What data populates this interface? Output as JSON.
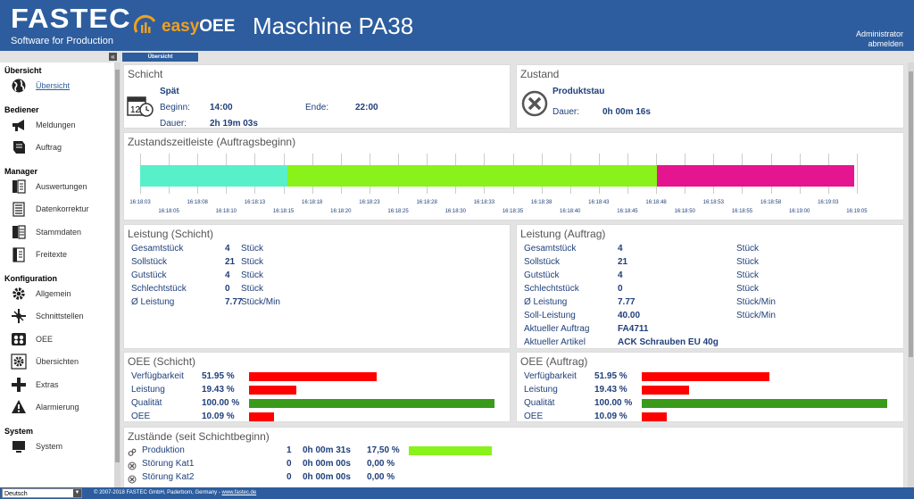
{
  "header": {
    "brand": "FASTEC",
    "brand_sub": "Software for Production",
    "product_prefix": "easy",
    "product_suffix": "OEE",
    "machine": "Maschine PA38",
    "user": "Administrator",
    "logout": "abmelden",
    "colors": {
      "bar": "#2d5d9e",
      "easy_orange": "#f0a020"
    }
  },
  "tabbar": {
    "collapse": "«",
    "active_tab": "Übersicht"
  },
  "sidebar": {
    "sections": [
      {
        "title": "Übersicht",
        "items": [
          {
            "label": "Übersicht",
            "icon": "globe-icon",
            "active": true
          }
        ]
      },
      {
        "title": "Bediener",
        "items": [
          {
            "label": "Meldungen",
            "icon": "megaphone-icon"
          },
          {
            "label": "Auftrag",
            "icon": "order-icon"
          }
        ]
      },
      {
        "title": "Manager",
        "items": [
          {
            "label": "Auswertungen",
            "icon": "report-icon"
          },
          {
            "label": "Datenkorrektur",
            "icon": "edit-data-icon"
          },
          {
            "label": "Stammdaten",
            "icon": "master-data-icon"
          },
          {
            "label": "Freitexte",
            "icon": "freetext-icon"
          }
        ]
      },
      {
        "title": "Konfiguration",
        "items": [
          {
            "label": "Allgemein",
            "icon": "gear-icon"
          },
          {
            "label": "Schnittstellen",
            "icon": "plug-icon"
          },
          {
            "label": "OEE",
            "icon": "oee-icon"
          },
          {
            "label": "Übersichten",
            "icon": "overview-gear-icon"
          },
          {
            "label": "Extras",
            "icon": "plus-icon"
          },
          {
            "label": "Alarmierung",
            "icon": "warning-icon"
          }
        ]
      },
      {
        "title": "System",
        "items": [
          {
            "label": "System",
            "icon": "system-icon"
          }
        ]
      }
    ]
  },
  "footer": {
    "language": "Deutsch",
    "language_arrow": "▼",
    "copyright": "© 2007-2018 FASTEC GmbH, Paderborn, Germany - ",
    "link": "www.fastec.de"
  },
  "schicht": {
    "title": "Schicht",
    "name": "Spät",
    "beginn_label": "Beginn:",
    "beginn": "14:00",
    "ende_label": "Ende:",
    "ende": "22:00",
    "dauer_label": "Dauer:",
    "dauer": "2h 19m 03s",
    "icon_text": "12"
  },
  "zustand": {
    "title": "Zustand",
    "name": "Produktstau",
    "dauer_label": "Dauer:",
    "dauer": "0h 00m 16s"
  },
  "timeline": {
    "title": "Zustandszeitleiste (Auftragsbeginn)",
    "segments": [
      {
        "state": "cyan",
        "color": "#58f0c8",
        "start": 0,
        "end": 0.198
      },
      {
        "state": "produktion",
        "color": "#88f21a",
        "start": 0.198,
        "end": 0.694
      },
      {
        "state": "produktstau",
        "color": "#e5158f",
        "start": 0.694,
        "end": 0.958
      }
    ],
    "ticks_top": [
      "16:18:03",
      "16:18:08",
      "16:18:13",
      "16:18:18",
      "16:18:23",
      "16:18:28",
      "16:18:33",
      "16:18:38",
      "16:18:43",
      "16:18:48",
      "16:18:53",
      "16:18:58",
      "16:19:03"
    ],
    "ticks_bottom": [
      "16:18:05",
      "16:18:10",
      "16:18:15",
      "16:18:20",
      "16:18:25",
      "16:18:30",
      "16:18:35",
      "16:18:40",
      "16:18:45",
      "16:18:50",
      "16:18:55",
      "16:19:00",
      "16:19:05"
    ]
  },
  "leistung_schicht": {
    "title": "Leistung (Schicht)",
    "rows": [
      {
        "label": "Gesamtstück",
        "value": "4",
        "unit": "Stück"
      },
      {
        "label": "Sollstück",
        "value": "21",
        "unit": "Stück"
      },
      {
        "label": "Gutstück",
        "value": "4",
        "unit": "Stück"
      },
      {
        "label": "Schlechtstück",
        "value": "0",
        "unit": "Stück"
      },
      {
        "label": "Ø Leistung",
        "value": "7.77",
        "unit": "Stück/Min"
      }
    ]
  },
  "leistung_auftrag": {
    "title": "Leistung (Auftrag)",
    "rows": [
      {
        "label": "Gesamtstück",
        "value": "4",
        "unit": "Stück"
      },
      {
        "label": "Sollstück",
        "value": "21",
        "unit": "Stück"
      },
      {
        "label": "Gutstück",
        "value": "4",
        "unit": "Stück"
      },
      {
        "label": "Schlechtstück",
        "value": "0",
        "unit": "Stück"
      },
      {
        "label": "Ø Leistung",
        "value": "7.77",
        "unit": "Stück/Min"
      },
      {
        "label": "Soll-Leistung",
        "value": "40.00",
        "unit": "Stück/Min"
      },
      {
        "label": "Aktueller Auftrag",
        "value": "FA4711",
        "unit": ""
      },
      {
        "label": "Aktueller Artikel",
        "value": "ACK Schrauben EU 40g",
        "unit": ""
      }
    ]
  },
  "oee_schicht": {
    "title": "OEE (Schicht)",
    "rows": [
      {
        "label": "Verfügbarkeit",
        "value": "51.95 %",
        "fraction": 0.5195,
        "color": "#ff0000"
      },
      {
        "label": "Leistung",
        "value": "19.43 %",
        "fraction": 0.1943,
        "color": "#ff0000"
      },
      {
        "label": "Qualität",
        "value": "100.00 %",
        "fraction": 1.0,
        "color": "#3a9a1a"
      },
      {
        "label": "OEE",
        "value": "10.09 %",
        "fraction": 0.1009,
        "color": "#ff0000"
      }
    ]
  },
  "oee_auftrag": {
    "title": "OEE (Auftrag)",
    "rows": [
      {
        "label": "Verfügbarkeit",
        "value": "51.95 %",
        "fraction": 0.5195,
        "color": "#ff0000"
      },
      {
        "label": "Leistung",
        "value": "19.43 %",
        "fraction": 0.1943,
        "color": "#ff0000"
      },
      {
        "label": "Qualität",
        "value": "100.00 %",
        "fraction": 1.0,
        "color": "#3a9a1a"
      },
      {
        "label": "OEE",
        "value": "10.09 %",
        "fraction": 0.1009,
        "color": "#ff0000"
      }
    ]
  },
  "zustaende": {
    "title": "Zustände (seit Schichtbeginn)",
    "rows": [
      {
        "icon": "produktion-icon",
        "label": "Produktion",
        "count": "1",
        "duration": "0h 00m 31s",
        "percent": "17,50 %",
        "fraction": 0.175,
        "color": "#88f21a"
      },
      {
        "icon": "stoerung-icon",
        "label": "Störung Kat1",
        "count": "0",
        "duration": "0h 00m 00s",
        "percent": "0,00 %",
        "fraction": 0,
        "color": "#ff0000"
      },
      {
        "icon": "stoerung-icon",
        "label": "Störung Kat2",
        "count": "0",
        "duration": "0h 00m 00s",
        "percent": "0,00 %",
        "fraction": 0,
        "color": "#ff0000"
      }
    ]
  }
}
